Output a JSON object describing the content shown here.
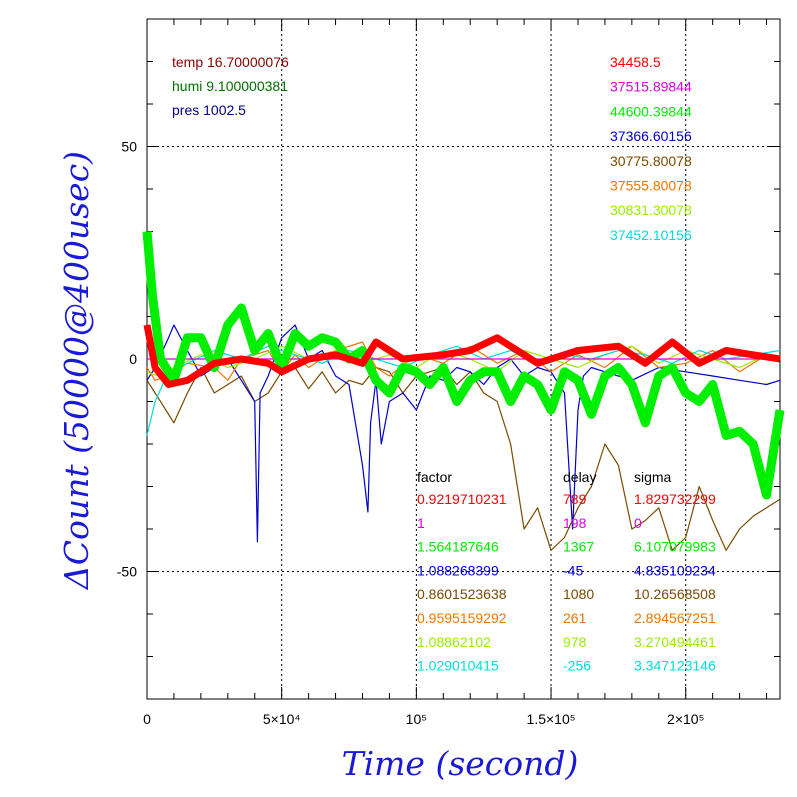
{
  "chart_data": {
    "type": "line",
    "xlabel": "Time (second)",
    "ylabel": "ΔCount (50000@400usec)",
    "xlim": [
      0,
      235000
    ],
    "ylim": [
      -80,
      80
    ],
    "x_ticks": [
      {
        "value": 0,
        "label": "0"
      },
      {
        "value": 50000,
        "label": "5×10⁴"
      },
      {
        "value": 100000,
        "label": "10⁵"
      },
      {
        "value": 150000,
        "label": "1.5×10⁵"
      },
      {
        "value": 200000,
        "label": "2×10⁵"
      }
    ],
    "y_ticks": [
      {
        "value": 50,
        "label": "50"
      },
      {
        "value": 0,
        "label": "0"
      },
      {
        "value": -50,
        "label": "-50"
      }
    ],
    "grid": true,
    "env": [
      {
        "text": "temp 16.70000076",
        "color": "#8b0000"
      },
      {
        "text": "humi 9.100000381",
        "color": "#007000"
      },
      {
        "text": "pres 1002.5",
        "color": "#00008b"
      }
    ],
    "table_headers": [
      "factor",
      "delay",
      "sigma"
    ],
    "series": [
      {
        "mean": "34458.5",
        "factor": "0.9219710231",
        "delay": "789",
        "sigma": "1.829732299",
        "color": "#ff0000",
        "x": [
          0,
          3000,
          8000,
          15000,
          25000,
          35000,
          45000,
          50000,
          60000,
          70000,
          80000,
          85000,
          95000,
          110000,
          120000,
          130000,
          145000,
          160000,
          175000,
          185000,
          195000,
          205000,
          215000,
          225000,
          235000
        ],
        "y": [
          8,
          -2,
          -6,
          -5,
          -1,
          0,
          -1,
          -3,
          0,
          1,
          -1,
          4,
          0,
          1,
          2,
          5,
          -1,
          2,
          3,
          -1,
          4,
          -1,
          2,
          1,
          0
        ]
      },
      {
        "mean": "37515.89844",
        "factor": "1",
        "delay": "198",
        "sigma": "0",
        "color": "#dd00dd",
        "x": [
          0,
          235000
        ],
        "y": [
          0,
          0
        ]
      },
      {
        "mean": "44600.39844",
        "factor": "1.564187646",
        "delay": "1367",
        "sigma": "6.107079983",
        "color": "#00ee00",
        "x": [
          0,
          2000,
          5000,
          10000,
          15000,
          20000,
          25000,
          30000,
          35000,
          40000,
          45000,
          50000,
          55000,
          60000,
          65000,
          70000,
          75000,
          80000,
          85000,
          90000,
          95000,
          100000,
          105000,
          110000,
          115000,
          120000,
          125000,
          130000,
          135000,
          140000,
          145000,
          150000,
          155000,
          160000,
          165000,
          170000,
          175000,
          180000,
          185000,
          190000,
          195000,
          200000,
          205000,
          210000,
          215000,
          220000,
          225000,
          230000,
          235000
        ],
        "y": [
          30,
          15,
          0,
          -5,
          5,
          5,
          -2,
          8,
          12,
          2,
          6,
          -2,
          6,
          3,
          5,
          4,
          0,
          2,
          -5,
          -8,
          -2,
          -3,
          -6,
          -2,
          -10,
          -5,
          -3,
          -3,
          -10,
          -4,
          -6,
          -12,
          -3,
          -5,
          -13,
          -4,
          -2,
          -6,
          -15,
          -4,
          -2,
          -8,
          -10,
          -6,
          -18,
          -17,
          -20,
          -32,
          -12
        ]
      },
      {
        "mean": "37366.60156",
        "factor": "1.088268399",
        "delay": "-45",
        "sigma": "4.835109234",
        "color": "#0000cc",
        "x": [
          0,
          3000,
          8000,
          10000,
          15000,
          20000,
          25000,
          30000,
          35000,
          40000,
          41000,
          42000,
          45000,
          50000,
          55000,
          60000,
          65000,
          70000,
          75000,
          80000,
          82000,
          83000,
          85000,
          87000,
          90000,
          95000,
          100000,
          105000,
          110000,
          115000,
          120000,
          125000,
          130000,
          135000,
          140000,
          145000,
          150000,
          155000,
          158000,
          160000,
          162000,
          165000,
          170000,
          180000,
          190000,
          200000,
          210000,
          220000,
          230000,
          235000
        ],
        "y": [
          -5,
          -2,
          5,
          8,
          2,
          -4,
          -2,
          0,
          -5,
          -10,
          -43,
          -8,
          -4,
          5,
          8,
          0,
          2,
          -4,
          -6,
          -25,
          -36,
          -15,
          -5,
          -20,
          -10,
          -8,
          -12,
          -4,
          -5,
          -2,
          -3,
          -6,
          -2,
          0,
          -4,
          -2,
          -3,
          -8,
          -40,
          -12,
          -4,
          -2,
          -3,
          -5,
          -2,
          -3,
          -4,
          -5,
          -6,
          -5
        ]
      },
      {
        "mean": "30775.80078",
        "factor": "0.8601523638",
        "delay": "1080",
        "sigma": "10.26568508",
        "color": "#7a4a00",
        "x": [
          0,
          5000,
          10000,
          15000,
          20000,
          25000,
          30000,
          35000,
          40000,
          45000,
          50000,
          55000,
          60000,
          65000,
          70000,
          75000,
          80000,
          85000,
          90000,
          95000,
          100000,
          105000,
          110000,
          115000,
          120000,
          125000,
          130000,
          135000,
          140000,
          145000,
          150000,
          155000,
          160000,
          165000,
          170000,
          175000,
          180000,
          185000,
          190000,
          195000,
          200000,
          205000,
          210000,
          215000,
          220000,
          225000,
          230000,
          235000
        ],
        "y": [
          -5,
          -10,
          -15,
          -8,
          -2,
          -8,
          -6,
          -4,
          -10,
          -8,
          -3,
          -2,
          -7,
          -3,
          -8,
          -5,
          -6,
          -2,
          -3,
          -8,
          -4,
          -3,
          -2,
          -6,
          -3,
          -8,
          -10,
          -20,
          -40,
          -35,
          -45,
          -42,
          -35,
          -30,
          -20,
          -25,
          -40,
          -38,
          -35,
          -45,
          -42,
          -30,
          -38,
          -45,
          -40,
          -37,
          -35,
          -33
        ]
      },
      {
        "mean": "37555.80078",
        "factor": "0.9595159292",
        "delay": "261",
        "sigma": "2.894567251",
        "color": "#ee7700",
        "x": [
          0,
          3000,
          8000,
          15000,
          25000,
          30000,
          35000,
          45000,
          50000,
          55000,
          60000,
          70000,
          80000,
          85000,
          90000,
          100000,
          110000,
          120000,
          130000,
          140000,
          150000,
          160000,
          170000,
          180000,
          190000,
          200000,
          210000,
          220000,
          230000,
          235000
        ],
        "y": [
          -2,
          -5,
          -4,
          -1,
          -2,
          -5,
          0,
          2,
          -3,
          1,
          -2,
          2,
          4,
          -2,
          -4,
          1,
          -1,
          3,
          -1,
          2,
          -3,
          1,
          -2,
          3,
          -2,
          -1,
          2,
          -3,
          1,
          0
        ]
      },
      {
        "mean": "30831.30078",
        "factor": "1.08862102",
        "delay": "978",
        "sigma": "3.270494461",
        "color": "#99ee00",
        "x": [
          0,
          4000,
          10000,
          20000,
          30000,
          40000,
          50000,
          60000,
          70000,
          80000,
          90000,
          100000,
          110000,
          120000,
          130000,
          140000,
          150000,
          160000,
          170000,
          180000,
          190000,
          200000,
          210000,
          220000,
          230000,
          235000
        ],
        "y": [
          -3,
          -4,
          -2,
          1,
          -2,
          0,
          3,
          0,
          2,
          -1,
          1,
          -2,
          2,
          0,
          -3,
          2,
          0,
          -2,
          1,
          3,
          -1,
          2,
          0,
          -2,
          1,
          0
        ]
      },
      {
        "mean": "37452.10156",
        "factor": "1.029010415",
        "delay": "-256",
        "sigma": "3.347123146",
        "color": "#00dddd",
        "x": [
          0,
          3000,
          8000,
          15000,
          25000,
          35000,
          45000,
          55000,
          65000,
          75000,
          85000,
          95000,
          105000,
          115000,
          125000,
          135000,
          145000,
          155000,
          165000,
          175000,
          185000,
          195000,
          205000,
          215000,
          225000,
          235000
        ],
        "y": [
          -18,
          -10,
          -3,
          -1,
          2,
          0,
          3,
          1,
          -1,
          2,
          0,
          -2,
          1,
          3,
          0,
          2,
          -1,
          1,
          0,
          2,
          1,
          -1,
          2,
          0,
          1,
          2
        ]
      }
    ]
  }
}
